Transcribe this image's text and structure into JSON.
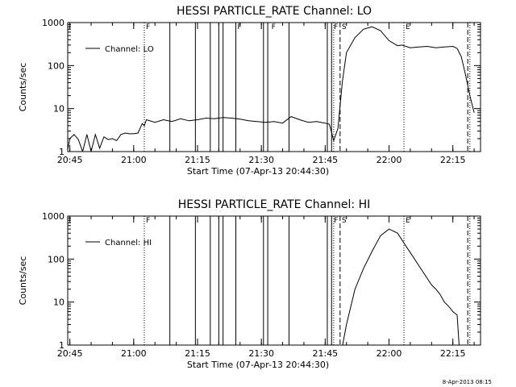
{
  "chart_data": [
    {
      "type": "line",
      "title": "HESSI PARTICLE_RATE Channel: LO",
      "xlabel": "Start Time (07-Apr-13 20:44:30)",
      "ylabel": "Counts/sec",
      "yscale": "log",
      "ylim": [
        1,
        1000
      ],
      "xlim": [
        "20:44:30",
        "22:21:30"
      ],
      "x_ticks": [
        "20:45",
        "21:00",
        "21:15",
        "21:30",
        "21:45",
        "22:00",
        "22:15"
      ],
      "y_ticks": [
        "1",
        "10",
        "100",
        "1000"
      ],
      "grid": false,
      "legend": "top-left",
      "series": [
        {
          "name": "Channel: LO",
          "x": [
            "20:44:30",
            "20:45:00",
            "20:46:00",
            "20:47:00",
            "20:48:00",
            "20:49:00",
            "20:50:00",
            "20:51:00",
            "20:52:00",
            "20:53:00",
            "20:54:00",
            "20:55:00",
            "20:56:00",
            "20:57:00",
            "20:58:00",
            "20:59:00",
            "21:00:00",
            "21:01:00",
            "21:02:00",
            "21:02:30",
            "21:03:00",
            "21:05:00",
            "21:07:00",
            "21:09:00",
            "21:11:00",
            "21:13:00",
            "21:15:00",
            "21:17:00",
            "21:19:00",
            "21:21:00",
            "21:23:00",
            "21:25:00",
            "21:27:00",
            "21:29:00",
            "21:31:00",
            "21:33:00",
            "21:35:00",
            "21:37:00",
            "21:39:00",
            "21:41:00",
            "21:43:00",
            "21:45:00",
            "21:46:00",
            "21:47:00",
            "21:48:00",
            "21:49:00",
            "21:50:00",
            "21:52:00",
            "21:54:00",
            "21:56:00",
            "21:58:00",
            "22:00:00",
            "22:02:00",
            "22:03:00",
            "22:05:00",
            "22:07:00",
            "22:09:00",
            "22:11:00",
            "22:13:00",
            "22:15:00",
            "22:16:00",
            "22:17:00",
            "22:18:00",
            "22:19:00",
            "22:20:00"
          ],
          "values": [
            1.1,
            2.0,
            2.5,
            1.9,
            1.0,
            2.5,
            1.0,
            2.5,
            1.2,
            2.2,
            1.9,
            2.0,
            1.8,
            2.5,
            2.7,
            2.6,
            2.6,
            2.7,
            4.5,
            4.0,
            5.5,
            4.8,
            5.5,
            5.0,
            5.8,
            5.2,
            5.5,
            6.0,
            5.8,
            6.2,
            6.0,
            5.7,
            5.2,
            5.0,
            4.8,
            5.0,
            4.6,
            6.5,
            5.5,
            4.8,
            5.0,
            4.6,
            4.3,
            1.8,
            3.5,
            40,
            200,
            450,
            700,
            800,
            650,
            380,
            290,
            300,
            260,
            270,
            280,
            260,
            270,
            280,
            250,
            160,
            60,
            20,
            8
          ]
        }
      ],
      "annotations": [
        {
          "label": "F",
          "x": "21:02:30"
        },
        {
          "label": "F",
          "x": "21:24:00"
        },
        {
          "label": "F",
          "x": "21:32:00"
        },
        {
          "label": "F",
          "x": "21:46:40"
        },
        {
          "label": "S",
          "x": "21:48:30"
        },
        {
          "label": "E",
          "x": "22:03:30"
        }
      ],
      "vertical_lines": [
        {
          "x": "21:02:30",
          "style": "dotted"
        },
        {
          "x": "21:08:30",
          "style": "solid"
        },
        {
          "x": "21:14:30",
          "style": "solid"
        },
        {
          "x": "21:18:00",
          "style": "solid"
        },
        {
          "x": "21:20:00",
          "style": "solid"
        },
        {
          "x": "21:21:00",
          "style": "solid"
        },
        {
          "x": "21:24:00",
          "style": "solid"
        },
        {
          "x": "21:30:30",
          "style": "solid"
        },
        {
          "x": "21:31:30",
          "style": "solid"
        },
        {
          "x": "21:36:30",
          "style": "solid"
        },
        {
          "x": "21:45:30",
          "style": "solid"
        },
        {
          "x": "21:46:30",
          "style": "solid"
        },
        {
          "x": "21:47:00",
          "style": "dotted"
        },
        {
          "x": "21:48:30",
          "style": "dashed"
        },
        {
          "x": "22:03:30",
          "style": "dotted"
        },
        {
          "x": "22:18:30",
          "style": "dashed"
        },
        {
          "x": "22:19:00",
          "style": "dotted"
        }
      ]
    },
    {
      "type": "line",
      "title": "HESSI PARTICLE_RATE Channel: HI",
      "xlabel": "Start Time (07-Apr-13 20:44:30)",
      "ylabel": "Counts/sec",
      "yscale": "log",
      "ylim": [
        1,
        1000
      ],
      "xlim": [
        "20:44:30",
        "22:21:30"
      ],
      "x_ticks": [
        "20:45",
        "21:00",
        "21:15",
        "21:30",
        "21:45",
        "22:00",
        "22:15"
      ],
      "y_ticks": [
        "1",
        "10",
        "100",
        "1000"
      ],
      "grid": false,
      "legend": "top-left",
      "series": [
        {
          "name": "Channel: HI",
          "x": [
            "21:49:00",
            "21:50:00",
            "21:52:00",
            "21:54:00",
            "21:56:00",
            "21:58:00",
            "22:00:00",
            "22:02:00",
            "22:04:00",
            "22:06:00",
            "22:08:00",
            "22:10:00",
            "22:11:00",
            "22:12:00",
            "22:13:00",
            "22:14:00",
            "22:15:00",
            "22:16:00",
            "22:16:30"
          ],
          "values": [
            0.9,
            3,
            20,
            60,
            150,
            350,
            500,
            400,
            200,
            100,
            50,
            25,
            20,
            15,
            10,
            8,
            6,
            5,
            0.9
          ]
        }
      ],
      "annotations": [
        {
          "label": "F",
          "x": "21:02:30"
        },
        {
          "label": "F",
          "x": "21:46:40"
        },
        {
          "label": "S",
          "x": "21:48:30"
        },
        {
          "label": "E",
          "x": "22:03:30"
        }
      ],
      "vertical_lines": [
        {
          "x": "21:02:30",
          "style": "dotted"
        },
        {
          "x": "21:08:30",
          "style": "solid"
        },
        {
          "x": "21:14:30",
          "style": "solid"
        },
        {
          "x": "21:18:00",
          "style": "solid"
        },
        {
          "x": "21:20:00",
          "style": "solid"
        },
        {
          "x": "21:21:00",
          "style": "solid"
        },
        {
          "x": "21:24:00",
          "style": "solid"
        },
        {
          "x": "21:30:30",
          "style": "solid"
        },
        {
          "x": "21:31:30",
          "style": "solid"
        },
        {
          "x": "21:36:30",
          "style": "solid"
        },
        {
          "x": "21:45:30",
          "style": "solid"
        },
        {
          "x": "21:46:30",
          "style": "solid"
        },
        {
          "x": "21:47:00",
          "style": "dotted"
        },
        {
          "x": "21:48:30",
          "style": "dashed"
        },
        {
          "x": "22:03:30",
          "style": "dotted"
        },
        {
          "x": "22:18:30",
          "style": "dashed"
        },
        {
          "x": "22:19:00",
          "style": "dotted"
        }
      ]
    }
  ],
  "footer": {
    "timestamp": "8-Apr-2013 08:15"
  }
}
